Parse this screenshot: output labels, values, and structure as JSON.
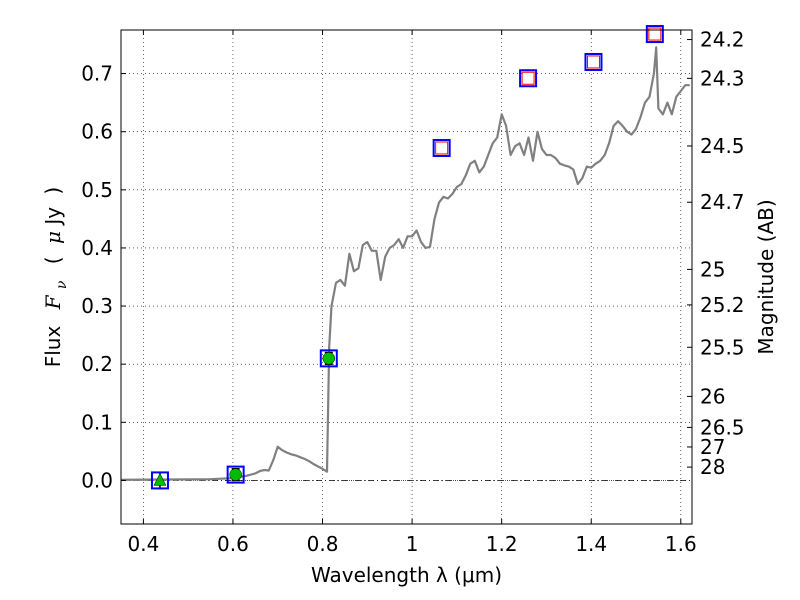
{
  "chart_data": {
    "type": "line",
    "xlabel": "Wavelength  λ (μm)",
    "ylabel": "Flux  F_ν  ( μJy )",
    "ylabel_parts": {
      "prefix": "Flux",
      "symbol": "F",
      "subscript": "ν",
      "open": "(",
      "mu": "μ",
      "unit": "Jy",
      "close": ")"
    },
    "ylabel_right": "Magnitude (AB)",
    "xlim": [
      0.35,
      1.625
    ],
    "ylim": [
      -0.075,
      0.775
    ],
    "grid": true,
    "x_ticks": [
      {
        "value": 0.4,
        "label": "0.4"
      },
      {
        "value": 0.6,
        "label": "0.6"
      },
      {
        "value": 0.8,
        "label": "0.8"
      },
      {
        "value": 1.0,
        "label": "1"
      },
      {
        "value": 1.2,
        "label": "1.2"
      },
      {
        "value": 1.4,
        "label": "1.4"
      },
      {
        "value": 1.6,
        "label": "1.6"
      }
    ],
    "y_ticks": [
      {
        "value": 0.0,
        "label": "0.0"
      },
      {
        "value": 0.1,
        "label": "0.1"
      },
      {
        "value": 0.2,
        "label": "0.2"
      },
      {
        "value": 0.3,
        "label": "0.3"
      },
      {
        "value": 0.4,
        "label": "0.4"
      },
      {
        "value": 0.5,
        "label": "0.5"
      },
      {
        "value": 0.6,
        "label": "0.6"
      },
      {
        "value": 0.7,
        "label": "0.7"
      }
    ],
    "mag_ticks": [
      {
        "value": 24.2,
        "label": "24.2"
      },
      {
        "value": 24.3,
        "label": "24.3"
      },
      {
        "value": 24.5,
        "label": "24.5"
      },
      {
        "value": 24.7,
        "label": "24.7"
      },
      {
        "value": 25.0,
        "label": "25"
      },
      {
        "value": 25.2,
        "label": "25.2"
      },
      {
        "value": 25.5,
        "label": "25.5"
      },
      {
        "value": 26.0,
        "label": "26"
      },
      {
        "value": 26.5,
        "label": "26.5"
      },
      {
        "value": 27.0,
        "label": "27"
      },
      {
        "value": 28.0,
        "label": "28"
      }
    ],
    "spectrum": {
      "color": "#808080",
      "x": [
        0.35,
        0.55,
        0.6,
        0.63,
        0.65,
        0.66,
        0.67,
        0.68,
        0.69,
        0.7,
        0.71,
        0.72,
        0.73,
        0.74,
        0.75,
        0.76,
        0.77,
        0.78,
        0.79,
        0.8,
        0.81,
        0.815,
        0.82,
        0.83,
        0.84,
        0.85,
        0.86,
        0.87,
        0.88,
        0.89,
        0.9,
        0.91,
        0.92,
        0.93,
        0.94,
        0.95,
        0.96,
        0.97,
        0.98,
        0.99,
        1.0,
        1.01,
        1.02,
        1.03,
        1.04,
        1.05,
        1.06,
        1.07,
        1.08,
        1.09,
        1.1,
        1.11,
        1.12,
        1.13,
        1.14,
        1.15,
        1.16,
        1.17,
        1.18,
        1.19,
        1.2,
        1.21,
        1.22,
        1.23,
        1.24,
        1.25,
        1.26,
        1.27,
        1.28,
        1.29,
        1.3,
        1.31,
        1.32,
        1.33,
        1.34,
        1.35,
        1.36,
        1.37,
        1.38,
        1.39,
        1.4,
        1.41,
        1.42,
        1.43,
        1.44,
        1.45,
        1.46,
        1.47,
        1.48,
        1.49,
        1.5,
        1.51,
        1.52,
        1.53,
        1.54,
        1.545,
        1.55,
        1.56,
        1.57,
        1.58,
        1.59,
        1.6,
        1.61,
        1.62
      ],
      "y": [
        0.001,
        0.002,
        0.004,
        0.008,
        0.012,
        0.016,
        0.018,
        0.017,
        0.035,
        0.058,
        0.052,
        0.048,
        0.045,
        0.043,
        0.04,
        0.037,
        0.033,
        0.028,
        0.024,
        0.02,
        0.015,
        0.23,
        0.3,
        0.34,
        0.345,
        0.335,
        0.39,
        0.36,
        0.365,
        0.405,
        0.41,
        0.395,
        0.395,
        0.345,
        0.385,
        0.4,
        0.405,
        0.415,
        0.4,
        0.42,
        0.42,
        0.43,
        0.41,
        0.4,
        0.402,
        0.45,
        0.478,
        0.488,
        0.485,
        0.493,
        0.505,
        0.51,
        0.525,
        0.545,
        0.55,
        0.53,
        0.54,
        0.56,
        0.58,
        0.59,
        0.63,
        0.61,
        0.56,
        0.575,
        0.58,
        0.56,
        0.59,
        0.55,
        0.6,
        0.57,
        0.56,
        0.56,
        0.555,
        0.545,
        0.542,
        0.54,
        0.535,
        0.51,
        0.52,
        0.54,
        0.538,
        0.545,
        0.55,
        0.56,
        0.58,
        0.61,
        0.618,
        0.61,
        0.6,
        0.595,
        0.605,
        0.625,
        0.65,
        0.66,
        0.7,
        0.745,
        0.64,
        0.63,
        0.65,
        0.63,
        0.66,
        0.67,
        0.68,
        0.68
      ]
    },
    "photometry": [
      {
        "x": 0.437,
        "y": 0.0,
        "err": 0.014,
        "marker": "triangle",
        "color": "#00bb00",
        "box": "#0000ff"
      },
      {
        "x": 0.606,
        "y": 0.01,
        "err": 0.01,
        "marker": "circle",
        "color": "#00bb00",
        "box": "#0000ff"
      },
      {
        "x": 0.814,
        "y": 0.21,
        "err": 0.01,
        "marker": "circle",
        "color": "#00bb00",
        "box": "#0000ff"
      },
      {
        "x": 1.066,
        "y": 0.572,
        "err": null,
        "marker": "open-square",
        "color": "#ff0000",
        "box": "#0000ff"
      },
      {
        "x": 1.259,
        "y": 0.692,
        "err": null,
        "marker": "open-square",
        "color": "#ff0000",
        "box": "#0000ff"
      },
      {
        "x": 1.405,
        "y": 0.72,
        "err": null,
        "marker": "open-square",
        "color": "#ff0000",
        "box": "#0000ff"
      },
      {
        "x": 1.542,
        "y": 0.768,
        "err": null,
        "marker": "open-square",
        "color": "#ff0000",
        "box": "#0000ff"
      }
    ],
    "zero_line": {
      "y": 0.0,
      "style": "dash-dot"
    }
  }
}
